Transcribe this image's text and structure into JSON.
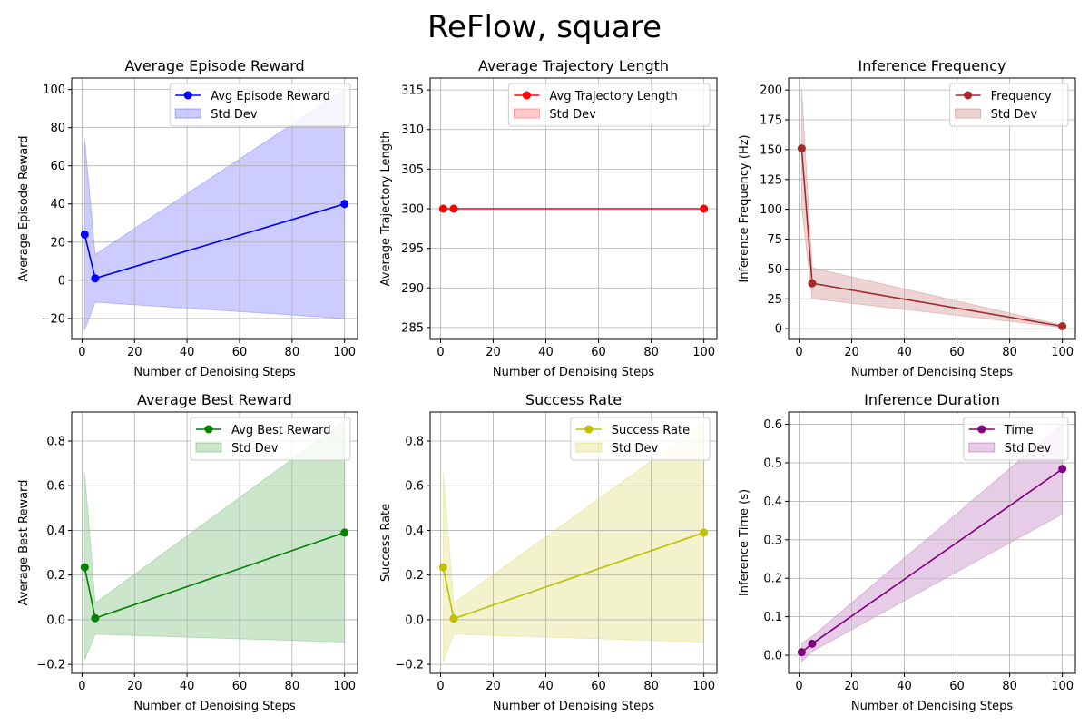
{
  "figure": {
    "title": "ReFlow, square"
  },
  "chart_data": [
    {
      "type": "line",
      "title": "Average Episode Reward",
      "xlabel": "Number of Denoising Steps",
      "ylabel": "Average Episode Reward",
      "xlim": [
        -3.95,
        104.95
      ],
      "ylim": [
        -31,
        106
      ],
      "xticks": [
        0,
        20,
        40,
        60,
        80,
        100
      ],
      "yticks": [
        -20,
        0,
        20,
        40,
        60,
        80,
        100
      ],
      "ytick_labels": [
        "−20",
        "0",
        "20",
        "40",
        "60",
        "80",
        "100"
      ],
      "grid": true,
      "legend_position": "upper right",
      "color": "#0000ff",
      "series": [
        {
          "name": "Avg Episode Reward",
          "x": [
            1,
            5,
            100
          ],
          "y": [
            24,
            1,
            40
          ]
        },
        {
          "name": "Std Dev",
          "x": [
            1,
            5,
            100
          ],
          "lower": [
            -26,
            -11.5,
            -20
          ],
          "upper": [
            74,
            13.5,
            100
          ]
        }
      ]
    },
    {
      "type": "line",
      "title": "Average Trajectory Length",
      "xlabel": "Number of Denoising Steps",
      "ylabel": "Average Trajectory Length",
      "xlim": [
        -3.95,
        104.95
      ],
      "ylim": [
        283.5,
        316.5
      ],
      "xticks": [
        0,
        20,
        40,
        60,
        80,
        100
      ],
      "yticks": [
        285,
        290,
        295,
        300,
        305,
        310,
        315
      ],
      "ytick_labels": [
        "285",
        "290",
        "295",
        "300",
        "305",
        "310",
        "315"
      ],
      "grid": true,
      "legend_position": "upper right",
      "color": "#ff0000",
      "series": [
        {
          "name": "Avg Trajectory Length",
          "x": [
            1,
            5,
            100
          ],
          "y": [
            300,
            300,
            300
          ]
        },
        {
          "name": "Std Dev",
          "x": [
            1,
            5,
            100
          ],
          "lower": [
            300,
            300,
            300
          ],
          "upper": [
            300,
            300,
            300
          ]
        }
      ]
    },
    {
      "type": "line",
      "title": "Inference Frequency",
      "xlabel": "Number of Denoising Steps",
      "ylabel": "Inference Frequency (Hz)",
      "xlim": [
        -3.95,
        104.95
      ],
      "ylim": [
        -9,
        210
      ],
      "xticks": [
        0,
        20,
        40,
        60,
        80,
        100
      ],
      "yticks": [
        0,
        25,
        50,
        75,
        100,
        125,
        150,
        175,
        200
      ],
      "ytick_labels": [
        "0",
        "25",
        "50",
        "75",
        "100",
        "125",
        "150",
        "175",
        "200"
      ],
      "grid": true,
      "legend_position": "upper right",
      "color": "#a52a2a",
      "series": [
        {
          "name": "Frequency",
          "x": [
            1,
            5,
            100
          ],
          "y": [
            151,
            38,
            2
          ]
        },
        {
          "name": "Std Dev",
          "x": [
            1,
            5,
            100
          ],
          "lower": [
            101,
            25,
            1
          ],
          "upper": [
            201,
            51,
            3
          ]
        }
      ]
    },
    {
      "type": "line",
      "title": "Average Best Reward",
      "xlabel": "Number of Denoising Steps",
      "ylabel": "Average Best Reward",
      "xlim": [
        -3.95,
        104.95
      ],
      "ylim": [
        -0.24,
        0.93
      ],
      "xticks": [
        0,
        20,
        40,
        60,
        80,
        100
      ],
      "yticks": [
        -0.2,
        0,
        0.2,
        0.4,
        0.6,
        0.8
      ],
      "ytick_labels": [
        "−0.2",
        "0.0",
        "0.2",
        "0.4",
        "0.6",
        "0.8"
      ],
      "grid": true,
      "legend_position": "upper right",
      "color": "#008000",
      "series": [
        {
          "name": "Avg Best Reward",
          "x": [
            1,
            5,
            100
          ],
          "y": [
            0.235,
            0.007,
            0.39
          ]
        },
        {
          "name": "Std Dev",
          "x": [
            1,
            5,
            100
          ],
          "lower": [
            -0.18,
            -0.065,
            -0.1
          ],
          "upper": [
            0.66,
            0.075,
            0.89
          ]
        }
      ]
    },
    {
      "type": "line",
      "title": "Success Rate",
      "xlabel": "Number of Denoising Steps",
      "ylabel": "Success Rate",
      "xlim": [
        -3.95,
        104.95
      ],
      "ylim": [
        -0.24,
        0.93
      ],
      "xticks": [
        0,
        20,
        40,
        60,
        80,
        100
      ],
      "yticks": [
        -0.2,
        0,
        0.2,
        0.4,
        0.6,
        0.8
      ],
      "ytick_labels": [
        "−0.2",
        "0.0",
        "0.2",
        "0.4",
        "0.6",
        "0.8"
      ],
      "grid": true,
      "legend_position": "upper right",
      "color": "#bfbf00",
      "series": [
        {
          "name": "Success Rate",
          "x": [
            1,
            5,
            100
          ],
          "y": [
            0.235,
            0.005,
            0.39
          ]
        },
        {
          "name": "Std Dev",
          "x": [
            1,
            5,
            100
          ],
          "lower": [
            -0.19,
            -0.065,
            -0.1
          ],
          "upper": [
            0.66,
            0.075,
            0.88
          ]
        }
      ]
    },
    {
      "type": "line",
      "title": "Inference Duration",
      "xlabel": "Number of Denoising Steps",
      "ylabel": "Inference Time (s)",
      "xlim": [
        -3.95,
        104.95
      ],
      "ylim": [
        -0.047,
        0.632
      ],
      "xticks": [
        0,
        20,
        40,
        60,
        80,
        100
      ],
      "yticks": [
        0,
        0.1,
        0.2,
        0.3,
        0.4,
        0.5,
        0.6
      ],
      "ytick_labels": [
        "0.0",
        "0.1",
        "0.2",
        "0.3",
        "0.4",
        "0.5",
        "0.6"
      ],
      "grid": true,
      "legend_position": "upper right",
      "color": "#800080",
      "series": [
        {
          "name": "Time",
          "x": [
            1,
            5,
            100
          ],
          "y": [
            0.008,
            0.03,
            0.484
          ]
        },
        {
          "name": "Std Dev",
          "x": [
            1,
            5,
            100
          ],
          "lower": [
            -0.017,
            0.01,
            0.367
          ],
          "upper": [
            0.032,
            0.049,
            0.601
          ]
        }
      ]
    }
  ]
}
